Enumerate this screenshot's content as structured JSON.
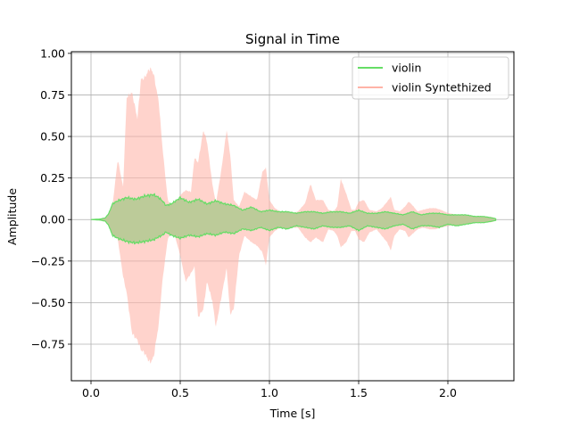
{
  "chart_data": {
    "type": "area",
    "title": "Signal in Time",
    "xlabel": "Time [s]",
    "ylabel": "Amplitude",
    "xlim": [
      -0.11,
      2.37
    ],
    "ylim": [
      -0.97,
      1.01
    ],
    "x_ticks": [
      0.0,
      0.5,
      1.0,
      1.5,
      2.0
    ],
    "x_tick_labels": [
      "0.0",
      "0.5",
      "1.0",
      "1.5",
      "2.0"
    ],
    "y_ticks": [
      -0.75,
      -0.5,
      -0.25,
      0.0,
      0.25,
      0.5,
      0.75,
      1.0
    ],
    "y_tick_labels": [
      "−0.75",
      "−0.50",
      "−0.25",
      "0.00",
      "0.25",
      "0.50",
      "0.75",
      "1.00"
    ],
    "grid": true,
    "legend_position": "top-right",
    "series": [
      {
        "name": "violin Syntethized",
        "color": "#ffb3a7",
        "opacity": 0.5,
        "envelope": {
          "t": [
            0.0,
            0.05,
            0.1,
            0.12,
            0.15,
            0.18,
            0.2,
            0.23,
            0.26,
            0.28,
            0.3,
            0.33,
            0.35,
            0.38,
            0.4,
            0.43,
            0.46,
            0.5,
            0.53,
            0.56,
            0.58,
            0.6,
            0.63,
            0.65,
            0.68,
            0.7,
            0.73,
            0.76,
            0.78,
            0.8,
            0.83,
            0.86,
            0.9,
            0.93,
            0.96,
            0.98,
            1.0,
            1.03,
            1.06,
            1.1,
            1.13,
            1.16,
            1.2,
            1.23,
            1.26,
            1.3,
            1.33,
            1.36,
            1.38,
            1.4,
            1.43,
            1.46,
            1.48,
            1.5,
            1.53,
            1.56,
            1.6,
            1.63,
            1.66,
            1.68,
            1.7,
            1.73,
            1.76,
            1.78,
            1.8,
            1.83,
            1.86,
            1.9,
            1.93,
            1.96,
            2.0,
            2.05,
            2.1,
            2.15,
            2.2,
            2.25,
            2.27
          ],
          "upper": [
            0.0,
            0.005,
            0.02,
            0.08,
            0.37,
            0.2,
            0.75,
            0.78,
            0.62,
            0.86,
            0.87,
            0.93,
            0.9,
            0.72,
            0.45,
            0.12,
            0.06,
            0.15,
            0.18,
            0.17,
            0.38,
            0.35,
            0.55,
            0.48,
            0.22,
            0.1,
            0.3,
            0.55,
            0.4,
            0.12,
            0.08,
            0.17,
            0.14,
            0.12,
            0.29,
            0.32,
            0.12,
            0.07,
            0.05,
            0.05,
            0.04,
            0.05,
            0.1,
            0.22,
            0.12,
            0.12,
            0.06,
            0.05,
            0.08,
            0.25,
            0.16,
            0.06,
            0.06,
            0.11,
            0.12,
            0.06,
            0.05,
            0.07,
            0.11,
            0.14,
            0.06,
            0.05,
            0.08,
            0.11,
            0.09,
            0.05,
            0.06,
            0.07,
            0.07,
            0.06,
            0.04,
            0.03,
            0.03,
            0.02,
            0.02,
            0.015,
            0.005
          ],
          "lower": [
            0.0,
            -0.005,
            -0.02,
            -0.08,
            -0.12,
            -0.35,
            -0.45,
            -0.7,
            -0.74,
            -0.8,
            -0.82,
            -0.88,
            -0.85,
            -0.64,
            -0.38,
            -0.12,
            -0.06,
            -0.22,
            -0.38,
            -0.33,
            -0.29,
            -0.6,
            -0.55,
            -0.38,
            -0.5,
            -0.66,
            -0.48,
            -0.3,
            -0.58,
            -0.55,
            -0.22,
            -0.1,
            -0.14,
            -0.16,
            -0.2,
            -0.28,
            -0.11,
            -0.07,
            -0.05,
            -0.05,
            -0.05,
            -0.05,
            -0.11,
            -0.14,
            -0.11,
            -0.14,
            -0.06,
            -0.07,
            -0.1,
            -0.17,
            -0.14,
            -0.07,
            -0.07,
            -0.12,
            -0.14,
            -0.08,
            -0.06,
            -0.1,
            -0.14,
            -0.19,
            -0.1,
            -0.06,
            -0.07,
            -0.11,
            -0.09,
            -0.06,
            -0.05,
            -0.06,
            -0.06,
            -0.05,
            -0.04,
            -0.03,
            -0.03,
            -0.02,
            -0.02,
            -0.015,
            -0.005
          ]
        }
      },
      {
        "name": "violin",
        "color": "#66dd66",
        "opacity": 1,
        "envelope": {
          "t": [
            0.0,
            0.05,
            0.08,
            0.1,
            0.12,
            0.15,
            0.2,
            0.25,
            0.3,
            0.35,
            0.38,
            0.4,
            0.42,
            0.45,
            0.5,
            0.55,
            0.6,
            0.65,
            0.7,
            0.75,
            0.8,
            0.85,
            0.9,
            0.95,
            1.0,
            1.05,
            1.1,
            1.15,
            1.2,
            1.25,
            1.3,
            1.35,
            1.4,
            1.45,
            1.5,
            1.55,
            1.6,
            1.65,
            1.7,
            1.75,
            1.8,
            1.85,
            1.9,
            1.95,
            2.0,
            2.05,
            2.1,
            2.15,
            2.2,
            2.25,
            2.27
          ],
          "upper": [
            0.0,
            0.003,
            0.01,
            0.04,
            0.1,
            0.12,
            0.14,
            0.13,
            0.15,
            0.16,
            0.14,
            0.12,
            0.09,
            0.1,
            0.14,
            0.11,
            0.13,
            0.1,
            0.12,
            0.1,
            0.09,
            0.06,
            0.08,
            0.05,
            0.06,
            0.05,
            0.05,
            0.04,
            0.05,
            0.05,
            0.04,
            0.05,
            0.05,
            0.04,
            0.06,
            0.04,
            0.04,
            0.05,
            0.04,
            0.03,
            0.05,
            0.03,
            0.04,
            0.04,
            0.03,
            0.03,
            0.03,
            0.02,
            0.02,
            0.01,
            0.005
          ],
          "lower": [
            0.0,
            -0.003,
            -0.01,
            -0.04,
            -0.1,
            -0.12,
            -0.14,
            -0.15,
            -0.14,
            -0.13,
            -0.11,
            -0.1,
            -0.08,
            -0.1,
            -0.12,
            -0.1,
            -0.11,
            -0.09,
            -0.1,
            -0.08,
            -0.09,
            -0.06,
            -0.07,
            -0.05,
            -0.07,
            -0.05,
            -0.06,
            -0.04,
            -0.05,
            -0.06,
            -0.04,
            -0.05,
            -0.05,
            -0.04,
            -0.07,
            -0.04,
            -0.05,
            -0.06,
            -0.04,
            -0.03,
            -0.06,
            -0.04,
            -0.04,
            -0.05,
            -0.03,
            -0.04,
            -0.03,
            -0.02,
            -0.02,
            -0.01,
            -0.005
          ]
        }
      }
    ],
    "overlap_color": "#bccb99"
  }
}
